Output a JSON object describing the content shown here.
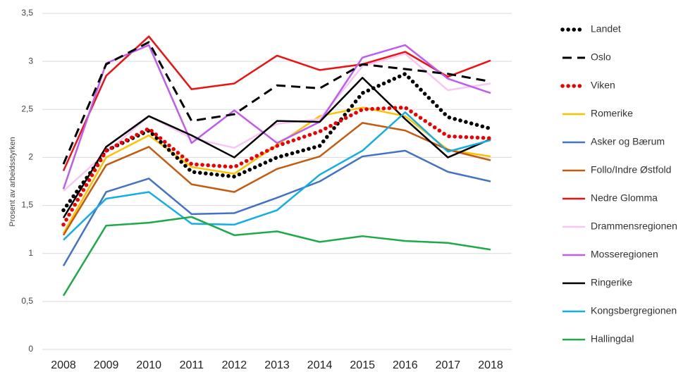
{
  "chart_data": {
    "type": "line",
    "y_label": "Prosent av arbeidsstyrken",
    "categories": [
      "2008",
      "2009",
      "2010",
      "2011",
      "2012",
      "2013",
      "2014",
      "2015",
      "2016",
      "2017",
      "2018"
    ],
    "ylim": [
      0,
      3.5
    ],
    "yticks": [
      0,
      {
        "value": 0.5,
        "label": "0,5"
      },
      1,
      {
        "value": 1.5,
        "label": "1,5"
      },
      2,
      {
        "value": 2.5,
        "label": "2,5"
      },
      3,
      {
        "value": 3.5,
        "label": "3,5"
      }
    ],
    "grid": true,
    "legend": "right",
    "series": [
      {
        "name": "Landet",
        "color": "#000000",
        "line_style": "dotted",
        "values": [
          1.45,
          2.07,
          2.28,
          1.85,
          1.8,
          2.0,
          2.12,
          2.67,
          2.87,
          2.42,
          2.3
        ]
      },
      {
        "name": "Oslo",
        "color": "#000000",
        "line_style": "dashed",
        "values": [
          1.93,
          2.97,
          3.2,
          2.38,
          2.45,
          2.75,
          2.72,
          2.97,
          2.92,
          2.87,
          2.79
        ]
      },
      {
        "name": "Viken",
        "color": "#ee0000",
        "line_style": "dotted",
        "values": [
          1.3,
          2.07,
          2.3,
          1.93,
          1.9,
          2.12,
          2.27,
          2.5,
          2.52,
          2.22,
          2.2
        ]
      },
      {
        "name": "Romerike",
        "color": "#ffc000",
        "line_style": "solid",
        "values": [
          1.21,
          2.0,
          2.23,
          1.9,
          1.83,
          2.13,
          2.43,
          2.52,
          2.43,
          2.08,
          2.01
        ]
      },
      {
        "name": "Asker og Bærum",
        "color": "#4472c4",
        "line_style": "solid",
        "values": [
          0.87,
          1.64,
          1.78,
          1.41,
          1.42,
          1.58,
          1.75,
          2.01,
          2.07,
          1.85,
          1.75
        ]
      },
      {
        "name": "Follo/Indre Østfold",
        "color": "#c55a11",
        "line_style": "solid",
        "values": [
          1.19,
          1.92,
          2.11,
          1.72,
          1.64,
          1.88,
          2.01,
          2.36,
          2.28,
          2.08,
          1.97
        ]
      },
      {
        "name": "Nedre Glomma",
        "color": "#ee1111",
        "line_style": "solid",
        "values": [
          1.86,
          2.85,
          3.26,
          2.71,
          2.77,
          3.06,
          2.91,
          2.97,
          3.1,
          2.84,
          3.01
        ]
      },
      {
        "name": "Drammensregionen",
        "color": "#f8c6f4",
        "line_style": "solid",
        "values": [
          1.65,
          2.05,
          2.43,
          2.2,
          2.1,
          2.35,
          2.4,
          2.95,
          3.08,
          2.7,
          2.77
        ]
      },
      {
        "name": "Mosseregionen",
        "color": "#bf5bf0",
        "line_style": "solid",
        "values": [
          1.67,
          2.98,
          3.17,
          2.15,
          2.49,
          2.15,
          2.37,
          3.04,
          3.17,
          2.82,
          2.67
        ]
      },
      {
        "name": "Ringerike",
        "color": "#000000",
        "line_style": "solid",
        "values": [
          1.37,
          2.11,
          2.43,
          2.23,
          2.0,
          2.38,
          2.37,
          2.83,
          2.4,
          2.0,
          2.19
        ]
      },
      {
        "name": "Kongsbergregionen",
        "color": "#12aee6",
        "line_style": "solid",
        "values": [
          1.14,
          1.57,
          1.64,
          1.31,
          1.3,
          1.45,
          1.82,
          2.07,
          2.47,
          2.06,
          2.18
        ]
      },
      {
        "name": "Hallingdal",
        "color": "#1faa4a",
        "line_style": "solid",
        "values": [
          0.56,
          1.29,
          1.32,
          1.38,
          1.19,
          1.23,
          1.12,
          1.18,
          1.13,
          1.11,
          1.04
        ]
      }
    ]
  }
}
